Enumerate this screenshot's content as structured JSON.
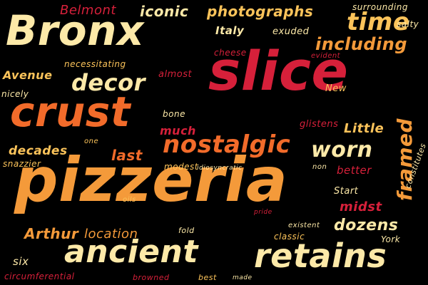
{
  "cloud": {
    "background": "#000000",
    "palette": {
      "cream": "#fde9a8",
      "yellow": "#fbc35a",
      "orange": "#f49a3a",
      "deep_orange": "#f26b2a",
      "red": "#d6203a"
    },
    "words": {
      "slice": "slice",
      "pizzeria": "pizzeria",
      "bronx": "Bronx",
      "crust": "crust",
      "ancient": "ancient",
      "retains": "retains",
      "nostalgic": "nostalgic",
      "decor": "decor",
      "time": "time",
      "including": "including",
      "worn": "worn",
      "photographs": "photographs",
      "framed": "framed",
      "dozens": "dozens",
      "location": "location",
      "arthur": "Arthur",
      "belmont": "Belmont",
      "iconic": "iconic",
      "surrounding": "surrounding",
      "salty": "salty",
      "italy": "Italy",
      "exuded": "exuded",
      "cheese": "cheese",
      "evident": "evident",
      "avenue": "Avenue",
      "necessitating": "necessitating",
      "almost": "almost",
      "new": "New",
      "nicely": "nicely",
      "bone": "bone",
      "glistens": "glistens",
      "little": "Little",
      "much": "much",
      "last": "last",
      "decades": "decades",
      "one": "one",
      "snazzier": "snazzier",
      "modest": "modest",
      "idiosyncratic": "idiosyncratic",
      "non": "non",
      "better": "better",
      "constitutes": "constitutes",
      "start": "Start",
      "midst": "midst",
      "oils": "oils",
      "pride": "pride",
      "fold": "fold",
      "existent": "existent",
      "classic": "classic",
      "york": "York",
      "six": "six",
      "circumferential": "circumferential",
      "browned": "browned",
      "best": "best",
      "made": "made"
    }
  }
}
